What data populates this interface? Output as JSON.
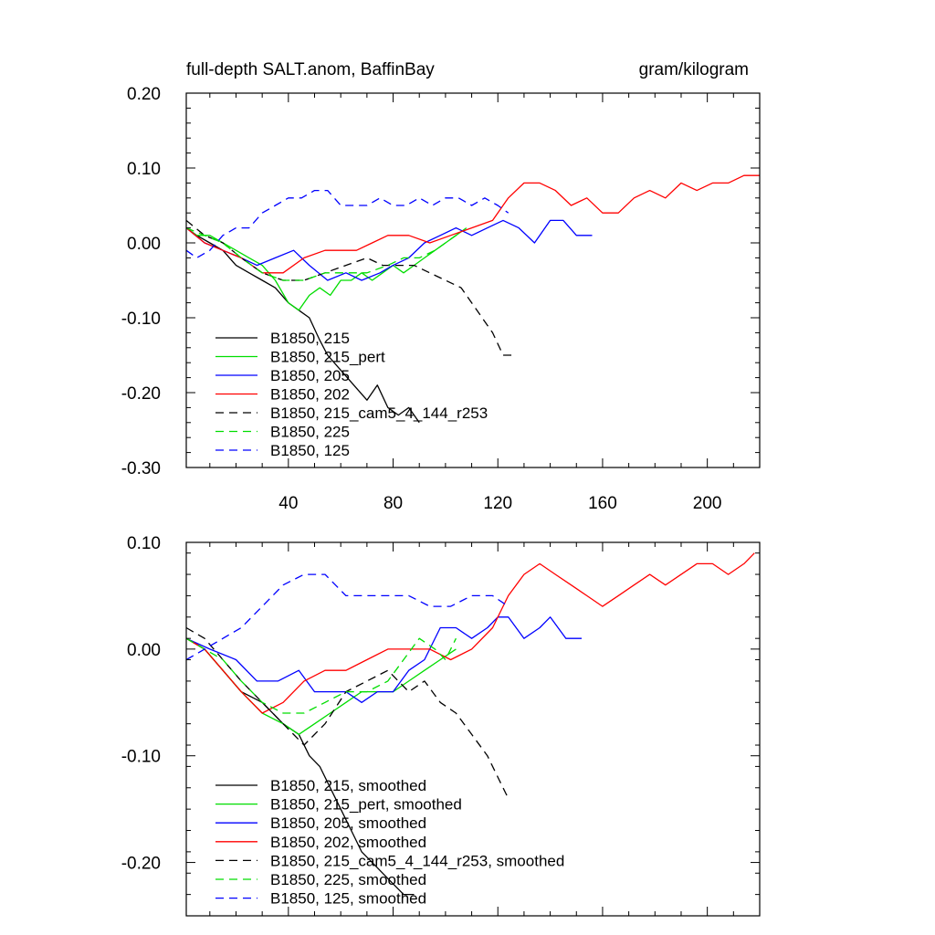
{
  "chart_data": [
    {
      "type": "line",
      "title": "full-depth SALT.anom, BaffinBay",
      "units": "gram/kilogram",
      "xlabel": "",
      "ylabel": "",
      "xlim": [
        1,
        220
      ],
      "ylim": [
        -0.3,
        0.2
      ],
      "x_ticks": [
        40,
        80,
        120,
        160,
        200
      ],
      "y_ticks": [
        0.2,
        0.1,
        0.0,
        -0.1,
        -0.2,
        -0.3
      ],
      "y_tick_labels": [
        "0.20",
        "0.10",
        "0.00",
        "-0.10",
        "-0.20",
        "-0.30"
      ],
      "legend_position": "bottom-left",
      "series": [
        {
          "name": "B1850, 215",
          "color": "#000000",
          "dash": "solid",
          "x": [
            1,
            5,
            10,
            15,
            20,
            25,
            30,
            35,
            40,
            44,
            48,
            52,
            55,
            60,
            65,
            70,
            74,
            78,
            82,
            86,
            90
          ],
          "y": [
            0.02,
            0.01,
            0.0,
            -0.01,
            -0.03,
            -0.04,
            -0.05,
            -0.06,
            -0.08,
            -0.09,
            -0.1,
            -0.13,
            -0.15,
            -0.17,
            -0.19,
            -0.21,
            -0.19,
            -0.22,
            -0.23,
            -0.22,
            -0.24
          ]
        },
        {
          "name": "B1850, 215_pert",
          "color": "#00dd00",
          "dash": "solid",
          "x": [
            1,
            5,
            10,
            15,
            20,
            25,
            30,
            35,
            40,
            44,
            48,
            52,
            56,
            60,
            64,
            68,
            72,
            76,
            80,
            84,
            88,
            92,
            96,
            100,
            104,
            108
          ],
          "y": [
            0.02,
            0.01,
            0.01,
            0.0,
            -0.01,
            -0.02,
            -0.03,
            -0.05,
            -0.08,
            -0.09,
            -0.07,
            -0.06,
            -0.07,
            -0.05,
            -0.05,
            -0.04,
            -0.05,
            -0.04,
            -0.03,
            -0.04,
            -0.03,
            -0.02,
            -0.01,
            0.0,
            0.01,
            0.02
          ]
        },
        {
          "name": "B1850, 205",
          "color": "#0000ff",
          "dash": "solid",
          "x": [
            1,
            8,
            15,
            22,
            28,
            35,
            42,
            48,
            55,
            62,
            68,
            75,
            80,
            86,
            92,
            98,
            104,
            110,
            116,
            122,
            128,
            134,
            140,
            145,
            150,
            156
          ],
          "y": [
            0.02,
            0.0,
            -0.01,
            -0.02,
            -0.03,
            -0.02,
            -0.01,
            -0.03,
            -0.05,
            -0.04,
            -0.05,
            -0.04,
            -0.03,
            -0.02,
            0.0,
            0.01,
            0.02,
            0.01,
            0.02,
            0.03,
            0.02,
            0.0,
            0.03,
            0.03,
            0.01,
            0.01
          ]
        },
        {
          "name": "B1850, 202",
          "color": "#ff0000",
          "dash": "solid",
          "x": [
            1,
            8,
            15,
            22,
            30,
            38,
            46,
            54,
            60,
            66,
            72,
            78,
            86,
            94,
            102,
            110,
            118,
            124,
            130,
            136,
            142,
            148,
            154,
            160,
            166,
            172,
            178,
            184,
            190,
            196,
            202,
            208,
            214,
            220
          ],
          "y": [
            0.02,
            0.0,
            -0.01,
            -0.02,
            -0.04,
            -0.04,
            -0.02,
            -0.01,
            -0.01,
            -0.01,
            0.0,
            0.01,
            0.01,
            0.0,
            0.01,
            0.02,
            0.03,
            0.06,
            0.08,
            0.08,
            0.07,
            0.05,
            0.06,
            0.04,
            0.04,
            0.06,
            0.07,
            0.06,
            0.08,
            0.07,
            0.08,
            0.08,
            0.09,
            0.09
          ]
        },
        {
          "name": "B1850, 215_cam5_4_144_r253",
          "color": "#000000",
          "dash": "dashed",
          "x": [
            1,
            8,
            15,
            22,
            30,
            38,
            46,
            54,
            62,
            70,
            76,
            82,
            88,
            94,
            100,
            106,
            112,
            118,
            122,
            126
          ],
          "y": [
            0.03,
            0.01,
            0.0,
            -0.02,
            -0.04,
            -0.05,
            -0.05,
            -0.04,
            -0.03,
            -0.02,
            -0.03,
            -0.03,
            -0.03,
            -0.04,
            -0.05,
            -0.06,
            -0.09,
            -0.12,
            -0.15,
            -0.15
          ]
        },
        {
          "name": "B1850, 225",
          "color": "#00dd00",
          "dash": "dashed",
          "x": [
            1,
            8,
            15,
            22,
            30,
            38,
            46,
            54,
            62,
            70,
            78,
            84,
            90,
            96,
            100,
            104
          ],
          "y": [
            0.02,
            0.01,
            0.0,
            -0.02,
            -0.04,
            -0.05,
            -0.05,
            -0.04,
            -0.04,
            -0.04,
            -0.03,
            -0.02,
            -0.02,
            -0.01,
            0.0,
            0.01
          ]
        },
        {
          "name": "B1850, 125",
          "color": "#0000ff",
          "dash": "dashed",
          "x": [
            1,
            5,
            10,
            15,
            20,
            25,
            30,
            35,
            40,
            45,
            50,
            55,
            60,
            65,
            70,
            75,
            80,
            85,
            90,
            95,
            100,
            105,
            110,
            115,
            120,
            124
          ],
          "y": [
            -0.01,
            -0.02,
            -0.01,
            0.01,
            0.02,
            0.02,
            0.04,
            0.05,
            0.06,
            0.06,
            0.07,
            0.07,
            0.05,
            0.05,
            0.05,
            0.06,
            0.05,
            0.05,
            0.06,
            0.05,
            0.06,
            0.06,
            0.05,
            0.06,
            0.05,
            0.04
          ]
        }
      ]
    },
    {
      "type": "line",
      "title": "",
      "xlabel": "",
      "ylabel": "",
      "xlim": [
        1,
        220
      ],
      "ylim": [
        -0.25,
        0.1
      ],
      "x_ticks": [
        40,
        80,
        120,
        160,
        200
      ],
      "y_ticks": [
        0.1,
        0.0,
        -0.1,
        -0.2
      ],
      "y_tick_labels": [
        "0.10",
        "0.00",
        "-0.10",
        "-0.20"
      ],
      "legend_position": "bottom-left",
      "series": [
        {
          "name": "B1850, 215, smoothed",
          "color": "#000000",
          "dash": "solid",
          "x": [
            1,
            8,
            15,
            22,
            30,
            38,
            44,
            48,
            52,
            56,
            60,
            64,
            68,
            72,
            76,
            80,
            84,
            88
          ],
          "y": [
            0.01,
            0.0,
            -0.02,
            -0.04,
            -0.05,
            -0.07,
            -0.08,
            -0.1,
            -0.11,
            -0.13,
            -0.15,
            -0.17,
            -0.19,
            -0.2,
            -0.21,
            -0.22,
            -0.23,
            -0.23
          ]
        },
        {
          "name": "B1850, 215_pert, smoothed",
          "color": "#00dd00",
          "dash": "solid",
          "x": [
            1,
            8,
            15,
            22,
            30,
            38,
            44,
            50,
            56,
            62,
            68,
            74,
            80,
            86,
            92,
            98,
            104
          ],
          "y": [
            0.01,
            0.0,
            -0.02,
            -0.04,
            -0.06,
            -0.07,
            -0.08,
            -0.07,
            -0.06,
            -0.05,
            -0.04,
            -0.04,
            -0.04,
            -0.03,
            -0.02,
            -0.01,
            0.0
          ]
        },
        {
          "name": "B1850, 205, smoothed",
          "color": "#0000ff",
          "dash": "solid",
          "x": [
            1,
            10,
            20,
            28,
            36,
            44,
            50,
            56,
            62,
            68,
            74,
            80,
            86,
            92,
            98,
            104,
            110,
            116,
            120,
            124,
            130,
            136,
            140,
            146,
            152
          ],
          "y": [
            0.01,
            0.0,
            -0.01,
            -0.03,
            -0.03,
            -0.02,
            -0.04,
            -0.04,
            -0.04,
            -0.05,
            -0.04,
            -0.04,
            -0.02,
            -0.01,
            0.02,
            0.02,
            0.01,
            0.02,
            0.03,
            0.03,
            0.01,
            0.02,
            0.03,
            0.01,
            0.01
          ]
        },
        {
          "name": "B1850, 202, smoothed",
          "color": "#ff0000",
          "dash": "solid",
          "x": [
            1,
            8,
            15,
            22,
            30,
            38,
            46,
            54,
            62,
            70,
            78,
            86,
            94,
            102,
            110,
            118,
            124,
            130,
            136,
            142,
            148,
            154,
            160,
            166,
            172,
            178,
            184,
            190,
            196,
            202,
            208,
            214,
            218
          ],
          "y": [
            0.01,
            0.0,
            -0.02,
            -0.04,
            -0.06,
            -0.05,
            -0.03,
            -0.02,
            -0.02,
            -0.01,
            0.0,
            0.0,
            0.0,
            -0.01,
            0.0,
            0.02,
            0.05,
            0.07,
            0.08,
            0.07,
            0.06,
            0.05,
            0.04,
            0.05,
            0.06,
            0.07,
            0.06,
            0.07,
            0.08,
            0.08,
            0.07,
            0.08,
            0.09
          ]
        },
        {
          "name": "B1850, 215_cam5_4_144_r253, smoothed",
          "color": "#000000",
          "dash": "dashed",
          "x": [
            1,
            8,
            15,
            22,
            30,
            38,
            46,
            54,
            62,
            70,
            78,
            86,
            92,
            98,
            104,
            110,
            116,
            120,
            124
          ],
          "y": [
            0.02,
            0.01,
            -0.01,
            -0.03,
            -0.05,
            -0.07,
            -0.09,
            -0.07,
            -0.04,
            -0.03,
            -0.02,
            -0.04,
            -0.03,
            -0.05,
            -0.06,
            -0.08,
            -0.1,
            -0.12,
            -0.14
          ]
        },
        {
          "name": "B1850, 225, smoothed",
          "color": "#00dd00",
          "dash": "dashed",
          "x": [
            1,
            8,
            15,
            22,
            30,
            38,
            46,
            54,
            62,
            70,
            78,
            84,
            90,
            96,
            100,
            104
          ],
          "y": [
            0.01,
            0.0,
            -0.01,
            -0.03,
            -0.05,
            -0.06,
            -0.06,
            -0.05,
            -0.04,
            -0.04,
            -0.03,
            -0.01,
            0.01,
            0.0,
            -0.01,
            0.01
          ]
        },
        {
          "name": "B1850, 125, smoothed",
          "color": "#0000ff",
          "dash": "dashed",
          "x": [
            1,
            8,
            15,
            22,
            30,
            38,
            46,
            54,
            62,
            70,
            78,
            86,
            94,
            102,
            110,
            118,
            124
          ],
          "y": [
            -0.01,
            0.0,
            0.01,
            0.02,
            0.04,
            0.06,
            0.07,
            0.07,
            0.05,
            0.05,
            0.05,
            0.05,
            0.04,
            0.04,
            0.05,
            0.05,
            0.04
          ]
        }
      ]
    }
  ]
}
